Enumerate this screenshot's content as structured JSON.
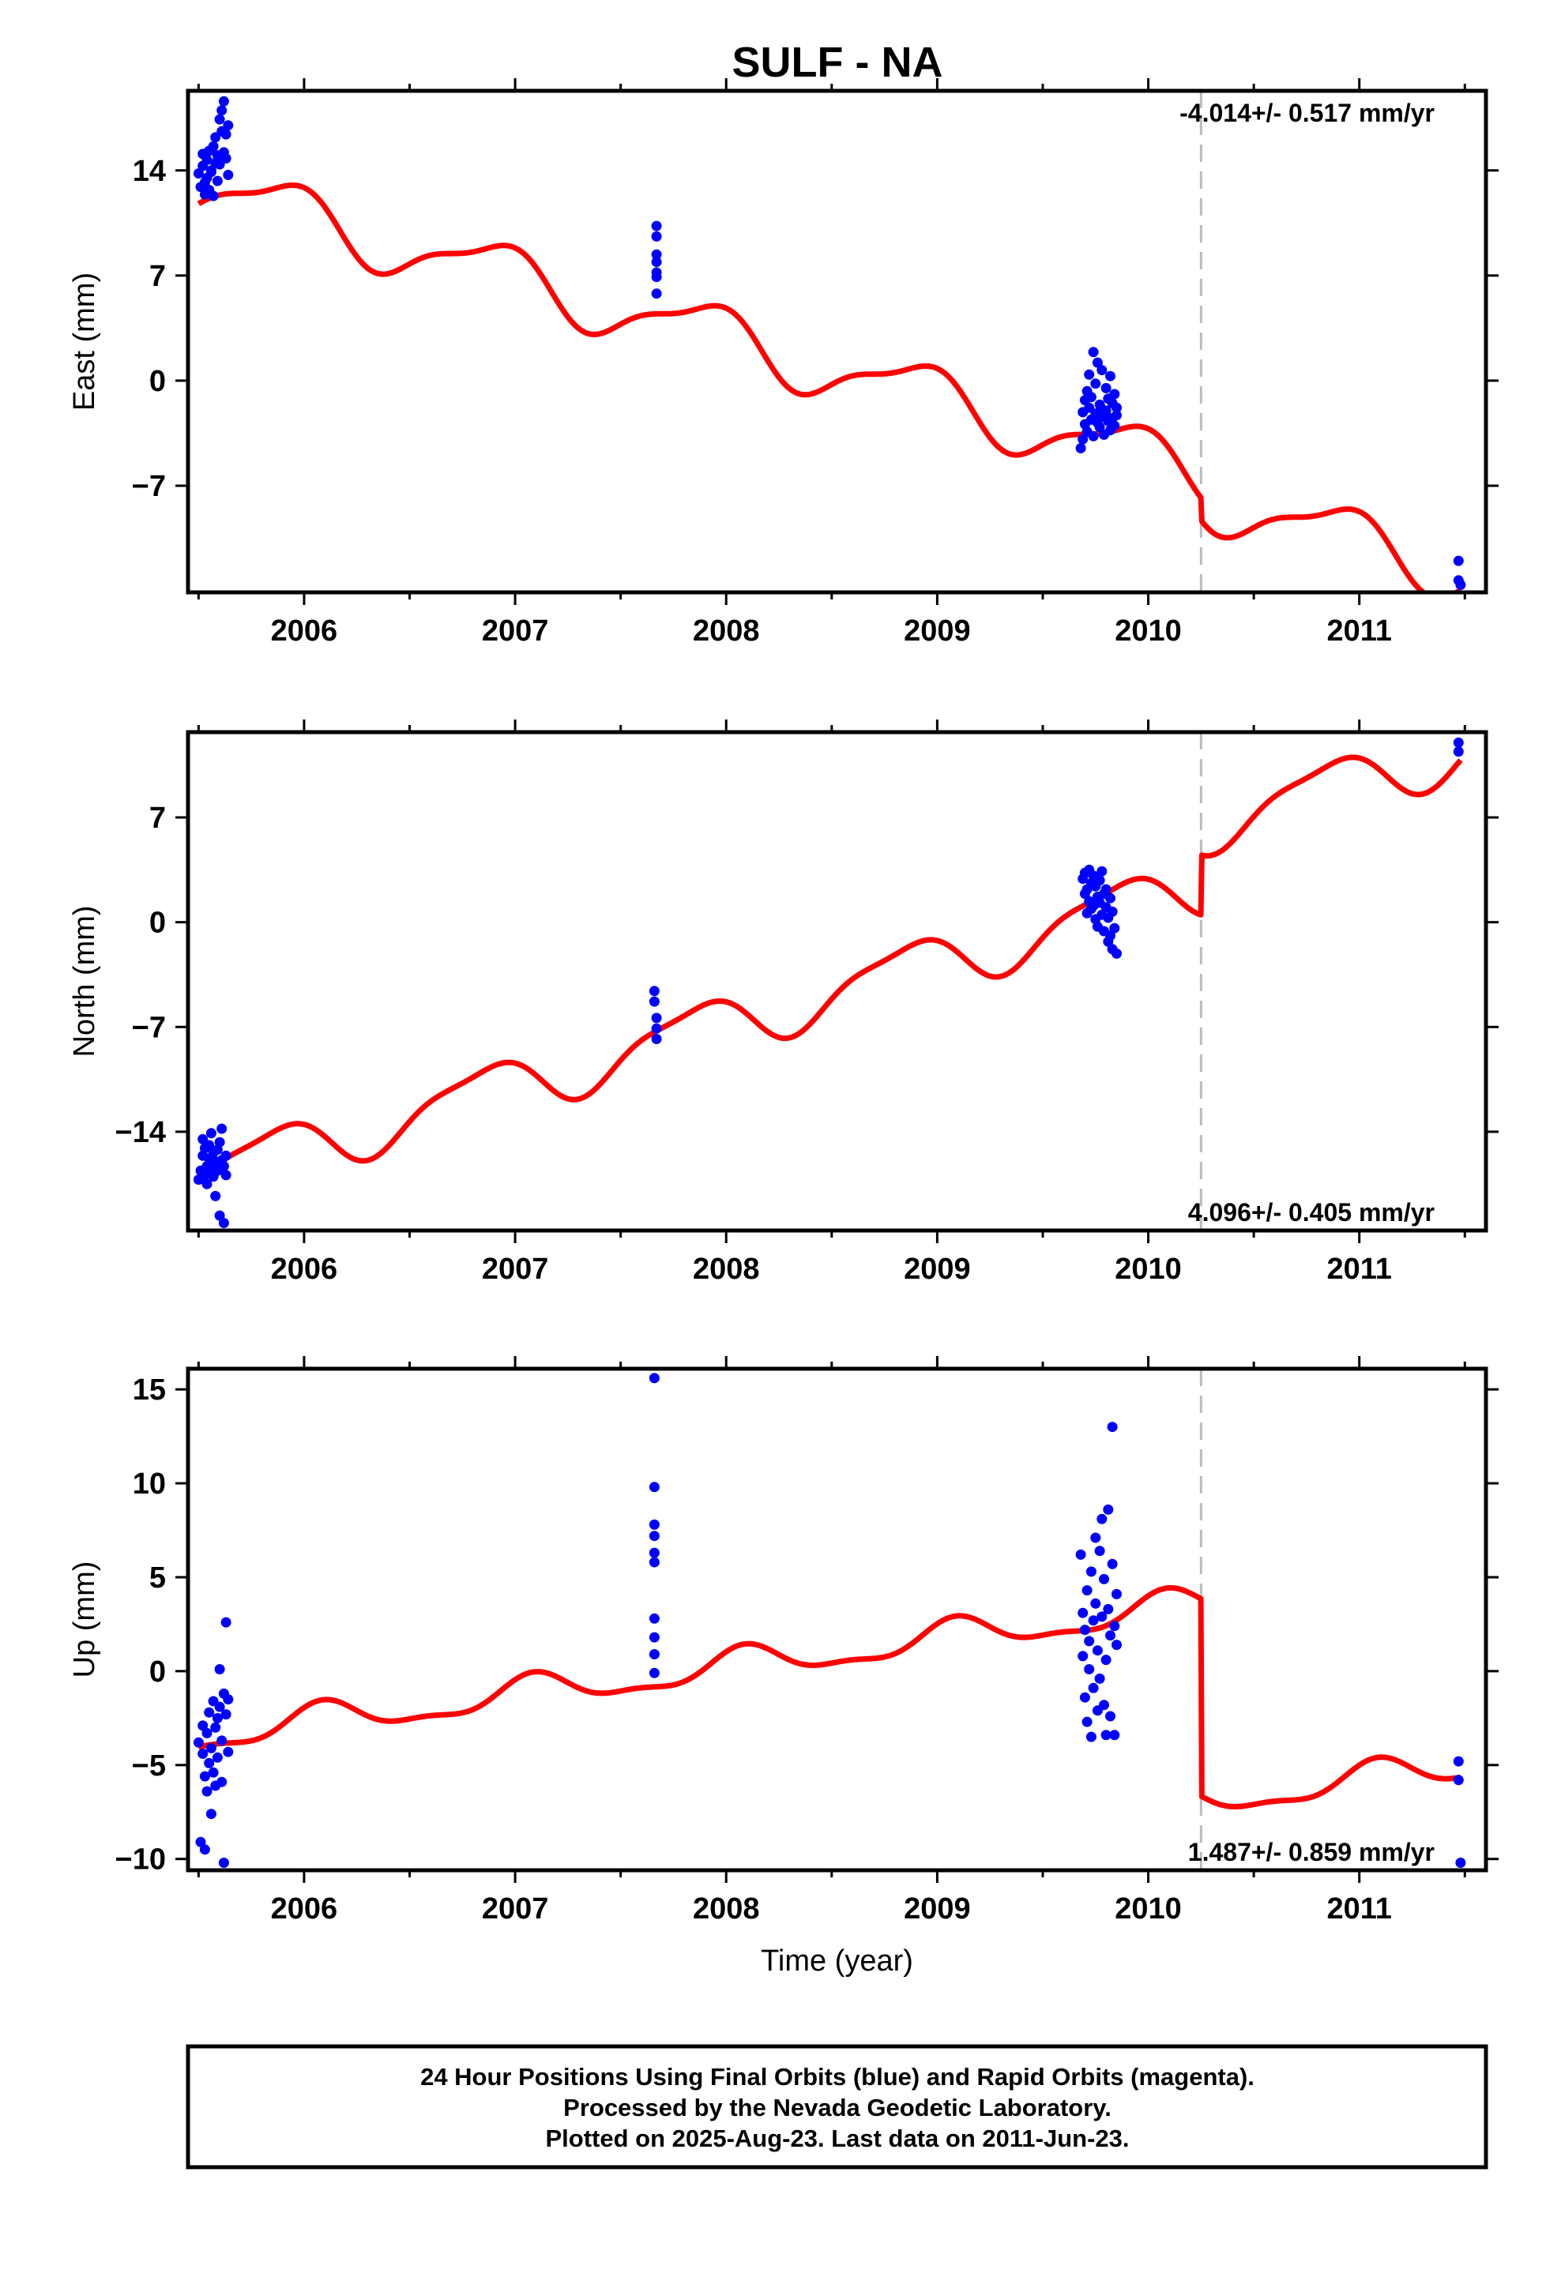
{
  "title": "SULF - NA",
  "footer": {
    "lines": [
      "24 Hour Positions Using Final Orbits (blue) and Rapid Orbits (magenta).",
      "Processed by the Nevada Geodetic Laboratory.",
      "Plotted on 2025-Aug-23. Last data on 2011-Jun-23."
    ]
  },
  "colors": {
    "data": "#0000ff",
    "model": "#ff0000",
    "break": "#bbbbbb",
    "frame": "#000000"
  },
  "chart_data": [
    {
      "type": "scatter",
      "ylabel": "East (mm)",
      "xlabel": "",
      "rate": "-4.014+/- 0.517 mm/yr",
      "rate_position": "top-right",
      "xlim": [
        2005.45,
        2011.6
      ],
      "ylim": [
        -14.1,
        19.3
      ],
      "xticks": [
        2006,
        2007,
        2008,
        2009,
        2010,
        2011
      ],
      "yticks": [
        -7,
        0,
        7,
        14
      ],
      "break_x": 2010.25,
      "series": [
        {
          "role": "observations",
          "points": [
            [
              2005.5,
              13.8
            ],
            [
              2005.51,
              12.9
            ],
            [
              2005.52,
              14.3
            ],
            [
              2005.52,
              15.1
            ],
            [
              2005.53,
              13.2
            ],
            [
              2005.53,
              12.4
            ],
            [
              2005.54,
              14.7
            ],
            [
              2005.54,
              13.5
            ],
            [
              2005.55,
              15.3
            ],
            [
              2005.55,
              12.7
            ],
            [
              2005.56,
              14.0
            ],
            [
              2005.56,
              13.9
            ],
            [
              2005.57,
              15.6
            ],
            [
              2005.57,
              12.3
            ],
            [
              2005.58,
              14.5
            ],
            [
              2005.58,
              16.2
            ],
            [
              2005.59,
              13.3
            ],
            [
              2005.59,
              15.0
            ],
            [
              2005.6,
              17.4
            ],
            [
              2005.6,
              14.4
            ],
            [
              2005.61,
              16.6
            ],
            [
              2005.61,
              18.0
            ],
            [
              2005.62,
              15.2
            ],
            [
              2005.62,
              18.6
            ],
            [
              2005.63,
              16.4
            ],
            [
              2005.63,
              14.8
            ],
            [
              2005.64,
              17.0
            ],
            [
              2005.64,
              13.7
            ],
            [
              2007.67,
              10.3
            ],
            [
              2007.67,
              9.6
            ],
            [
              2007.67,
              8.4
            ],
            [
              2007.67,
              7.9
            ],
            [
              2007.67,
              7.2
            ],
            [
              2007.67,
              6.9
            ],
            [
              2007.67,
              5.8
            ],
            [
              2009.68,
              -4.5
            ],
            [
              2009.69,
              -3.9
            ],
            [
              2009.69,
              -2.1
            ],
            [
              2009.7,
              -1.3
            ],
            [
              2009.7,
              -2.9
            ],
            [
              2009.71,
              -0.7
            ],
            [
              2009.71,
              -3.4
            ],
            [
              2009.72,
              -1.8
            ],
            [
              2009.72,
              0.4
            ],
            [
              2009.73,
              -2.6
            ],
            [
              2009.73,
              -1.1
            ],
            [
              2009.74,
              -3.7
            ],
            [
              2009.74,
              1.9
            ],
            [
              2009.75,
              -2.2
            ],
            [
              2009.75,
              -0.2
            ],
            [
              2009.76,
              1.2
            ],
            [
              2009.76,
              -2.8
            ],
            [
              2009.77,
              -1.6
            ],
            [
              2009.77,
              -3.1
            ],
            [
              2009.78,
              0.7
            ],
            [
              2009.78,
              -1.9
            ],
            [
              2009.79,
              -2.4
            ],
            [
              2009.79,
              -3.6
            ],
            [
              2009.8,
              -0.5
            ],
            [
              2009.8,
              -2.0
            ],
            [
              2009.81,
              -1.2
            ],
            [
              2009.81,
              -2.7
            ],
            [
              2009.82,
              0.3
            ],
            [
              2009.82,
              -3.3
            ],
            [
              2009.83,
              -1.5
            ],
            [
              2009.83,
              -2.5
            ],
            [
              2009.84,
              -0.9
            ],
            [
              2009.84,
              -3.0
            ],
            [
              2009.85,
              -1.8
            ],
            [
              2009.85,
              -2.3
            ],
            [
              2011.47,
              -12.0
            ],
            [
              2011.47,
              -13.3
            ],
            [
              2011.48,
              -13.6
            ]
          ]
        },
        {
          "role": "model",
          "rate": -4.014,
          "offset": -2.0,
          "annual_amp": 1.9,
          "annual_phase": 2.2,
          "semi_amp": 0.6,
          "semi_phase": 0.9,
          "step": -1.5,
          "ref_epoch": 2009.2,
          "from": 2005.5,
          "to": 2011.48
        }
      ]
    },
    {
      "type": "scatter",
      "ylabel": "North (mm)",
      "xlabel": "",
      "rate": "4.096+/- 0.405 mm/yr",
      "rate_position": "bottom-right",
      "xlim": [
        2005.45,
        2011.6
      ],
      "ylim": [
        -20.6,
        12.7
      ],
      "xticks": [
        2006,
        2007,
        2008,
        2009,
        2010,
        2011
      ],
      "yticks": [
        -14,
        -7,
        0,
        7
      ],
      "break_x": 2010.25,
      "series": [
        {
          "role": "observations",
          "points": [
            [
              2005.5,
              -17.2
            ],
            [
              2005.51,
              -16.6
            ],
            [
              2005.52,
              -15.6
            ],
            [
              2005.52,
              -14.5
            ],
            [
              2005.53,
              -16.9
            ],
            [
              2005.53,
              -15.1
            ],
            [
              2005.54,
              -16.3
            ],
            [
              2005.54,
              -17.5
            ],
            [
              2005.55,
              -14.9
            ],
            [
              2005.55,
              -15.8
            ],
            [
              2005.56,
              -16.4
            ],
            [
              2005.56,
              -14.1
            ],
            [
              2005.57,
              -17.0
            ],
            [
              2005.57,
              -15.4
            ],
            [
              2005.58,
              -16.0
            ],
            [
              2005.58,
              -18.3
            ],
            [
              2005.59,
              -15.2
            ],
            [
              2005.59,
              -16.6
            ],
            [
              2005.6,
              -14.7
            ],
            [
              2005.6,
              -19.6
            ],
            [
              2005.61,
              -15.9
            ],
            [
              2005.61,
              -13.8
            ],
            [
              2005.62,
              -16.3
            ],
            [
              2005.62,
              -20.1
            ],
            [
              2005.63,
              -15.6
            ],
            [
              2005.63,
              -16.9
            ],
            [
              2007.66,
              -4.6
            ],
            [
              2007.66,
              -5.3
            ],
            [
              2007.67,
              -6.4
            ],
            [
              2007.67,
              -7.1
            ],
            [
              2007.67,
              -7.8
            ],
            [
              2009.69,
              2.9
            ],
            [
              2009.7,
              1.9
            ],
            [
              2009.7,
              3.3
            ],
            [
              2009.71,
              0.6
            ],
            [
              2009.71,
              2.2
            ],
            [
              2009.72,
              1.4
            ],
            [
              2009.72,
              3.5
            ],
            [
              2009.73,
              0.9
            ],
            [
              2009.73,
              2.6
            ],
            [
              2009.74,
              1.1
            ],
            [
              2009.74,
              3.1
            ],
            [
              2009.75,
              0.2
            ],
            [
              2009.75,
              2.4
            ],
            [
              2009.76,
              1.7
            ],
            [
              2009.76,
              -0.3
            ],
            [
              2009.77,
              2.8
            ],
            [
              2009.77,
              1.3
            ],
            [
              2009.78,
              0.5
            ],
            [
              2009.78,
              3.4
            ],
            [
              2009.79,
              1.9
            ],
            [
              2009.79,
              -0.6
            ],
            [
              2009.8,
              1.0
            ],
            [
              2009.8,
              2.2
            ],
            [
              2009.81,
              0.3
            ],
            [
              2009.81,
              -1.3
            ],
            [
              2009.82,
              1.6
            ],
            [
              2009.82,
              -0.9
            ],
            [
              2009.83,
              0.7
            ],
            [
              2009.83,
              -1.8
            ],
            [
              2009.84,
              -0.4
            ],
            [
              2009.85,
              -2.1
            ],
            [
              2011.47,
              12.0
            ],
            [
              2011.47,
              11.4
            ]
          ]
        },
        {
          "role": "model",
          "rate": 4.096,
          "offset": -1.8,
          "annual_amp": 1.8,
          "annual_phase": 2.6,
          "semi_amp": 0.5,
          "semi_phase": 1.2,
          "step": 4.0,
          "ref_epoch": 2009.2,
          "from": 2005.5,
          "to": 2011.48
        }
      ]
    },
    {
      "type": "scatter",
      "ylabel": "Up (mm)",
      "xlabel": "Time (year)",
      "rate": "1.487+/- 0.859 mm/yr",
      "rate_position": "bottom-right",
      "xlim": [
        2005.45,
        2011.6
      ],
      "ylim": [
        -10.6,
        16.1
      ],
      "xticks": [
        2006,
        2007,
        2008,
        2009,
        2010,
        2011
      ],
      "yticks": [
        -10,
        -5,
        0,
        5,
        10,
        15
      ],
      "break_x": 2010.25,
      "series": [
        {
          "role": "observations",
          "points": [
            [
              2005.5,
              -3.8
            ],
            [
              2005.51,
              -9.1
            ],
            [
              2005.52,
              -4.4
            ],
            [
              2005.52,
              -2.9
            ],
            [
              2005.53,
              -5.6
            ],
            [
              2005.53,
              -9.5
            ],
            [
              2005.54,
              -3.3
            ],
            [
              2005.54,
              -6.4
            ],
            [
              2005.55,
              -4.9
            ],
            [
              2005.55,
              -2.2
            ],
            [
              2005.56,
              -7.6
            ],
            [
              2005.56,
              -4.1
            ],
            [
              2005.57,
              -1.6
            ],
            [
              2005.57,
              -5.4
            ],
            [
              2005.58,
              -3.0
            ],
            [
              2005.58,
              -6.1
            ],
            [
              2005.59,
              -2.5
            ],
            [
              2005.59,
              -4.6
            ],
            [
              2005.6,
              0.1
            ],
            [
              2005.6,
              -1.9
            ],
            [
              2005.61,
              -3.7
            ],
            [
              2005.61,
              -5.9
            ],
            [
              2005.62,
              -1.2
            ],
            [
              2005.62,
              -10.2
            ],
            [
              2005.63,
              2.6
            ],
            [
              2005.63,
              -2.3
            ],
            [
              2005.64,
              -4.3
            ],
            [
              2005.64,
              -1.5
            ],
            [
              2007.66,
              15.6
            ],
            [
              2007.66,
              9.8
            ],
            [
              2007.66,
              7.8
            ],
            [
              2007.66,
              7.2
            ],
            [
              2007.66,
              6.3
            ],
            [
              2007.66,
              5.8
            ],
            [
              2007.66,
              2.8
            ],
            [
              2007.66,
              1.8
            ],
            [
              2007.66,
              0.9
            ],
            [
              2007.66,
              -0.1
            ],
            [
              2009.68,
              6.2
            ],
            [
              2009.69,
              0.8
            ],
            [
              2009.69,
              3.1
            ],
            [
              2009.7,
              -1.4
            ],
            [
              2009.7,
              2.2
            ],
            [
              2009.71,
              -2.7
            ],
            [
              2009.71,
              4.3
            ],
            [
              2009.72,
              0.1
            ],
            [
              2009.72,
              1.6
            ],
            [
              2009.73,
              -3.5
            ],
            [
              2009.73,
              5.3
            ],
            [
              2009.74,
              2.7
            ],
            [
              2009.74,
              -0.9
            ],
            [
              2009.75,
              7.1
            ],
            [
              2009.75,
              3.6
            ],
            [
              2009.76,
              -2.1
            ],
            [
              2009.76,
              1.1
            ],
            [
              2009.77,
              6.4
            ],
            [
              2009.77,
              -0.4
            ],
            [
              2009.78,
              2.9
            ],
            [
              2009.78,
              8.1
            ],
            [
              2009.79,
              -1.8
            ],
            [
              2009.79,
              4.9
            ],
            [
              2009.8,
              0.6
            ],
            [
              2009.8,
              -3.4
            ],
            [
              2009.81,
              3.3
            ],
            [
              2009.81,
              8.6
            ],
            [
              2009.82,
              1.9
            ],
            [
              2009.82,
              -2.4
            ],
            [
              2009.83,
              5.7
            ],
            [
              2009.83,
              13.0
            ],
            [
              2009.84,
              2.4
            ],
            [
              2009.84,
              -3.4
            ],
            [
              2009.85,
              4.1
            ],
            [
              2009.85,
              1.4
            ],
            [
              2011.47,
              -4.8
            ],
            [
              2011.47,
              -5.8
            ],
            [
              2011.48,
              -10.2
            ]
          ]
        },
        {
          "role": "model",
          "rate": 1.487,
          "offset": 2.0,
          "annual_amp": 0.8,
          "annual_phase": 1.0,
          "semi_amp": 0.3,
          "semi_phase": 0.5,
          "step": -10.5,
          "ref_epoch": 2009.2,
          "from": 2005.5,
          "to": 2011.48
        }
      ]
    }
  ]
}
